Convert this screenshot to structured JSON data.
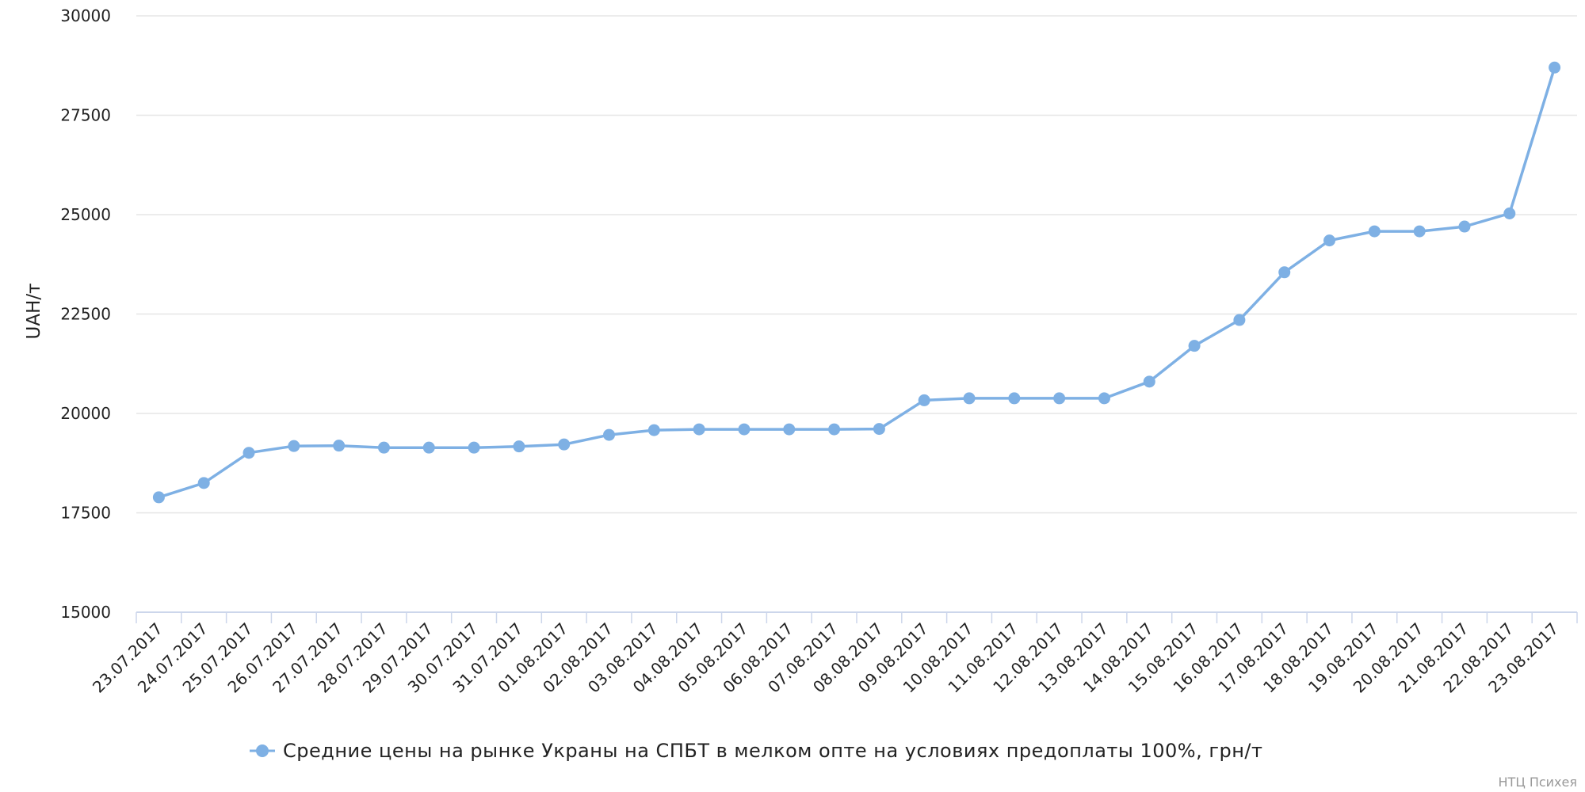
{
  "chart_data": {
    "type": "line",
    "ylabel": "UAH/т",
    "ylim": [
      15000,
      30000
    ],
    "yticks": [
      15000,
      17500,
      20000,
      22500,
      25000,
      27500,
      30000
    ],
    "grid": true,
    "legend_position": "bottom-center",
    "colors": {
      "series": "#7eb0e4",
      "grid": "#e6e6e6",
      "axis": "#ccd6eb"
    },
    "categories": [
      "23.07.2017",
      "24.07.2017",
      "25.07.2017",
      "26.07.2017",
      "27.07.2017",
      "28.07.2017",
      "29.07.2017",
      "30.07.2017",
      "31.07.2017",
      "01.08.2017",
      "02.08.2017",
      "03.08.2017",
      "04.08.2017",
      "05.08.2017",
      "06.08.2017",
      "07.08.2017",
      "08.08.2017",
      "09.08.2017",
      "10.08.2017",
      "11.08.2017",
      "12.08.2017",
      "13.08.2017",
      "14.08.2017",
      "15.08.2017",
      "16.08.2017",
      "17.08.2017",
      "18.08.2017",
      "19.08.2017",
      "20.08.2017",
      "21.08.2017",
      "22.08.2017",
      "23.08.2017"
    ],
    "series": [
      {
        "name": "Средние цены на рынке Украны на СПБТ в мелком опте на условиях предоплаты 100%, грн/т",
        "values": [
          17890,
          18250,
          19010,
          19180,
          19190,
          19140,
          19140,
          19140,
          19170,
          19220,
          19460,
          19580,
          19600,
          19600,
          19600,
          19600,
          19610,
          20330,
          20380,
          20380,
          20380,
          20380,
          20800,
          21700,
          22350,
          23550,
          24350,
          24580,
          24580,
          24700,
          25030,
          28700
        ]
      }
    ]
  },
  "credit": "НТЦ Психея"
}
